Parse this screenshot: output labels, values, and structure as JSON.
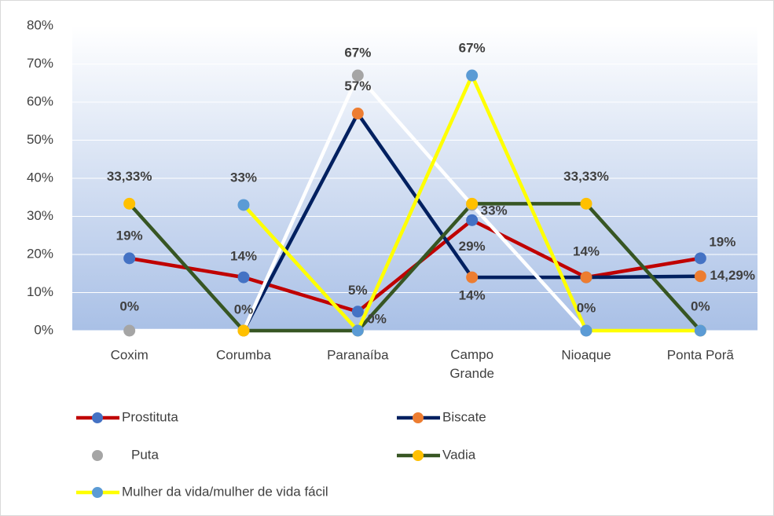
{
  "chart_data": {
    "type": "line",
    "categories": [
      "Coxim",
      "Corumba",
      "Paranaíba",
      "Campo Grande",
      "Nioaque",
      "Ponta Porã"
    ],
    "ylim": [
      0,
      80
    ],
    "yticks": [
      {
        "value": 0,
        "label": "0%"
      },
      {
        "value": 10,
        "label": "10%"
      },
      {
        "value": 20,
        "label": "20%"
      },
      {
        "value": 30,
        "label": "30%"
      },
      {
        "value": 40,
        "label": "40%"
      },
      {
        "value": 50,
        "label": "50%"
      },
      {
        "value": 60,
        "label": "60%"
      },
      {
        "value": 70,
        "label": "70%"
      },
      {
        "value": 80,
        "label": "80%"
      }
    ],
    "grid": true,
    "legend": "bottom",
    "series": [
      {
        "name": "Prostituta",
        "color": "#c00000",
        "marker_color": "#4472c4",
        "values": [
          19,
          14,
          5,
          29,
          14,
          19
        ],
        "value_labels": [
          "19%",
          "14%",
          "5%",
          "29%",
          "14%",
          "19%"
        ]
      },
      {
        "name": "Biscate",
        "color": "#002060",
        "marker_color": "#ed7d31",
        "values": [
          null,
          0,
          57,
          14,
          14,
          14.29
        ],
        "value_labels": [
          null,
          null,
          "57%",
          "14%",
          null,
          "14,29%"
        ]
      },
      {
        "name": "Puta",
        "color": "#ffffff",
        "marker_color": "#a5a5a5",
        "values": [
          0,
          0,
          67,
          33,
          0,
          null
        ],
        "value_labels": [
          "0%",
          null,
          "67%",
          "33%",
          null,
          null
        ]
      },
      {
        "name": "Vadia",
        "color": "#375623",
        "marker_color": "#ffc000",
        "values": [
          33.33,
          0,
          0,
          33.33,
          33.33,
          0
        ],
        "value_labels": [
          "33,33%",
          "0%",
          "0%",
          null,
          "33,33%",
          "0%"
        ]
      },
      {
        "name": "Mulher da vida/mulher de vida fácil",
        "color": "#ffff00",
        "marker_color": "#5b9bd5",
        "values": [
          null,
          33,
          0,
          67,
          0,
          0
        ],
        "value_labels": [
          null,
          "33%",
          null,
          "67%",
          "0%",
          null
        ]
      }
    ]
  }
}
